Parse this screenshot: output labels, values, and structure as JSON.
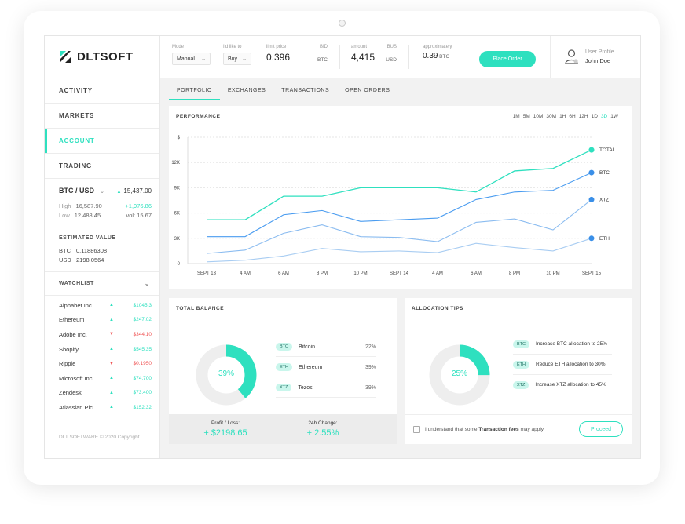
{
  "app": {
    "logo": "DLTSOFT"
  },
  "nav": [
    {
      "label": "ACTIVITY",
      "active": false
    },
    {
      "label": "MARKETS",
      "active": false
    },
    {
      "label": "ACCOUNT",
      "active": true
    },
    {
      "label": "TRADING",
      "active": false
    }
  ],
  "ticker": {
    "pair": "BTC / USD",
    "price": "15,437.00",
    "high_label": "High",
    "high": "16,587.90",
    "change": "+1,976.86",
    "low_label": "Low",
    "low": "12,488.45",
    "vol": "vol: 15.67"
  },
  "estimated": {
    "title": "ESTIMATED VALUE",
    "btc_label": "BTC",
    "btc": "0.11886308",
    "usd_label": "USD",
    "usd": "2198.0564"
  },
  "watchlist": {
    "title": "WATCHLIST",
    "items": [
      {
        "name": "Alphabet Inc.",
        "dir": "up",
        "value": "$1045.3"
      },
      {
        "name": "Ethereum",
        "dir": "up",
        "value": "$247.02"
      },
      {
        "name": "Adobe Inc.",
        "dir": "down",
        "value": "$344.10"
      },
      {
        "name": "Shopify",
        "dir": "up",
        "value": "$545.35"
      },
      {
        "name": "Ripple",
        "dir": "down",
        "value": "$0.1950"
      },
      {
        "name": "Microsoft Inc.",
        "dir": "up",
        "value": "$74.700"
      },
      {
        "name": "Zendesk",
        "dir": "up",
        "value": "$73.400"
      },
      {
        "name": "Atlassian Plc.",
        "dir": "up",
        "value": "$152.32"
      }
    ]
  },
  "copyright": "DLT SOFTWARE © 2020 Copyright.",
  "topbar": {
    "mode_label": "Mode",
    "mode_value": "Manual",
    "side_label": "I'd like to",
    "side_value": "Buy",
    "price_label": "limit price",
    "price_value": "0.396",
    "price_unit_top": "BID",
    "price_unit": "BTC",
    "amount_label": "amount",
    "amount_value": "4,415",
    "amount_unit_top": "BUS",
    "amount_unit": "USD",
    "approx_label": "approximately",
    "approx_value": "0.39",
    "approx_unit": "BTC",
    "place_order": "Place Order",
    "profile_label": "User Profile",
    "profile_name": "John Doe"
  },
  "tabs": [
    {
      "label": "PORTFOLIO",
      "active": true
    },
    {
      "label": "EXCHANGES",
      "active": false
    },
    {
      "label": "TRANSACTIONS",
      "active": false
    },
    {
      "label": "OPEN ORDERS",
      "active": false
    }
  ],
  "performance": {
    "title": "PERFORMANCE",
    "ranges": [
      "1M",
      "5M",
      "10M",
      "30M",
      "1H",
      "6H",
      "12H",
      "1D",
      "3D",
      "1W"
    ],
    "selected_range": "3D"
  },
  "chart_data": {
    "type": "line",
    "title": "PERFORMANCE",
    "x": [
      "SEPT 13",
      "4 AM",
      "6 AM",
      "8 PM",
      "10 PM",
      "SEPT 14",
      "4 AM",
      "6 AM",
      "8 PM",
      "10 PM",
      "SEPT 15"
    ],
    "y_ticks": [
      "0",
      "3K",
      "6K",
      "9K",
      "12K",
      "$"
    ],
    "ylim": [
      0,
      15000
    ],
    "grid": true,
    "legend_position": "right",
    "series": [
      {
        "name": "TOTAL",
        "color": "#2ee0bf",
        "values": [
          5200,
          5200,
          8000,
          8000,
          9000,
          9000,
          9000,
          8500,
          11000,
          11300,
          13500
        ]
      },
      {
        "name": "BTC",
        "color": "#4a9cf0",
        "values": [
          3200,
          3200,
          5800,
          6300,
          5000,
          5200,
          5400,
          7600,
          8500,
          8700,
          10800
        ]
      },
      {
        "name": "XTZ",
        "color": "#8bbcf0",
        "values": [
          1200,
          1600,
          3600,
          4600,
          3200,
          3100,
          2600,
          4900,
          5300,
          4000,
          7600
        ]
      },
      {
        "name": "ETH",
        "color": "#a9cdf2",
        "values": [
          200,
          400,
          900,
          1800,
          1400,
          1500,
          1300,
          2400,
          1900,
          1500,
          3000
        ]
      }
    ]
  },
  "balance": {
    "title": "TOTAL BALANCE",
    "donut_pct": 39,
    "donut_label": "39%",
    "rows": [
      {
        "tag": "BTC",
        "name": "Bitcoin",
        "pct": "22%"
      },
      {
        "tag": "ETH",
        "name": "Ethereum",
        "pct": "39%"
      },
      {
        "tag": "XTZ",
        "name": "Tezos",
        "pct": "39%"
      }
    ],
    "pl_label": "Profit / Loss:",
    "pl_value": "+ $2198.65",
    "change_label": "24h Change:",
    "change_value": "+ 2.55%"
  },
  "allocation": {
    "title": "ALLOCATION TIPS",
    "donut_pct": 25,
    "donut_label": "25%",
    "tips": [
      {
        "tag": "BTC",
        "text": "Increase BTC allocation to 25%"
      },
      {
        "tag": "ETH",
        "text": "Reduce ETH allocation to 30%"
      },
      {
        "tag": "XTZ",
        "text": "Increase XTZ allocation to 45%"
      }
    ],
    "confirm_text": "I understand that some",
    "confirm_bold": "Transaction fees",
    "confirm_tail": "may apply",
    "proceed": "Proceed"
  },
  "colors": {
    "accent": "#2ee0bf",
    "up": "#2ee0bf",
    "down": "#f05454"
  }
}
